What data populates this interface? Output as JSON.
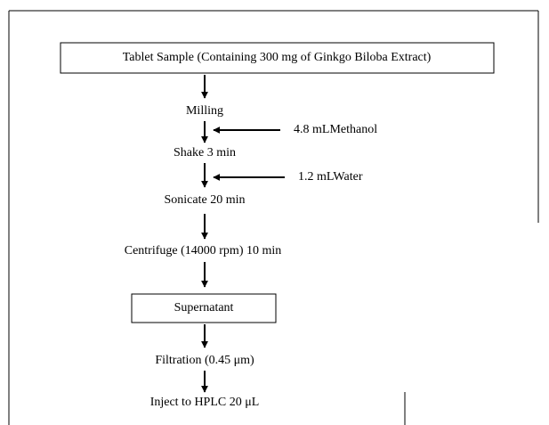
{
  "steps": [
    {
      "label": "Tablet Sample (Containing 300 mg of Ginkgo Biloba Extract)"
    },
    {
      "label": "Milling"
    },
    {
      "label": "Shake 3 min"
    },
    {
      "label": "Sonicate 20 min"
    },
    {
      "label": "Centrifuge (14000 rpm) 10 min"
    },
    {
      "label": "Supernatant"
    },
    {
      "label": "Filtration (0.45 μm)"
    },
    {
      "label": "Inject to HPLC 20 μL"
    }
  ],
  "additions": [
    {
      "label": "4.8 mLMethanol"
    },
    {
      "label": "1.2 mLWater"
    }
  ]
}
